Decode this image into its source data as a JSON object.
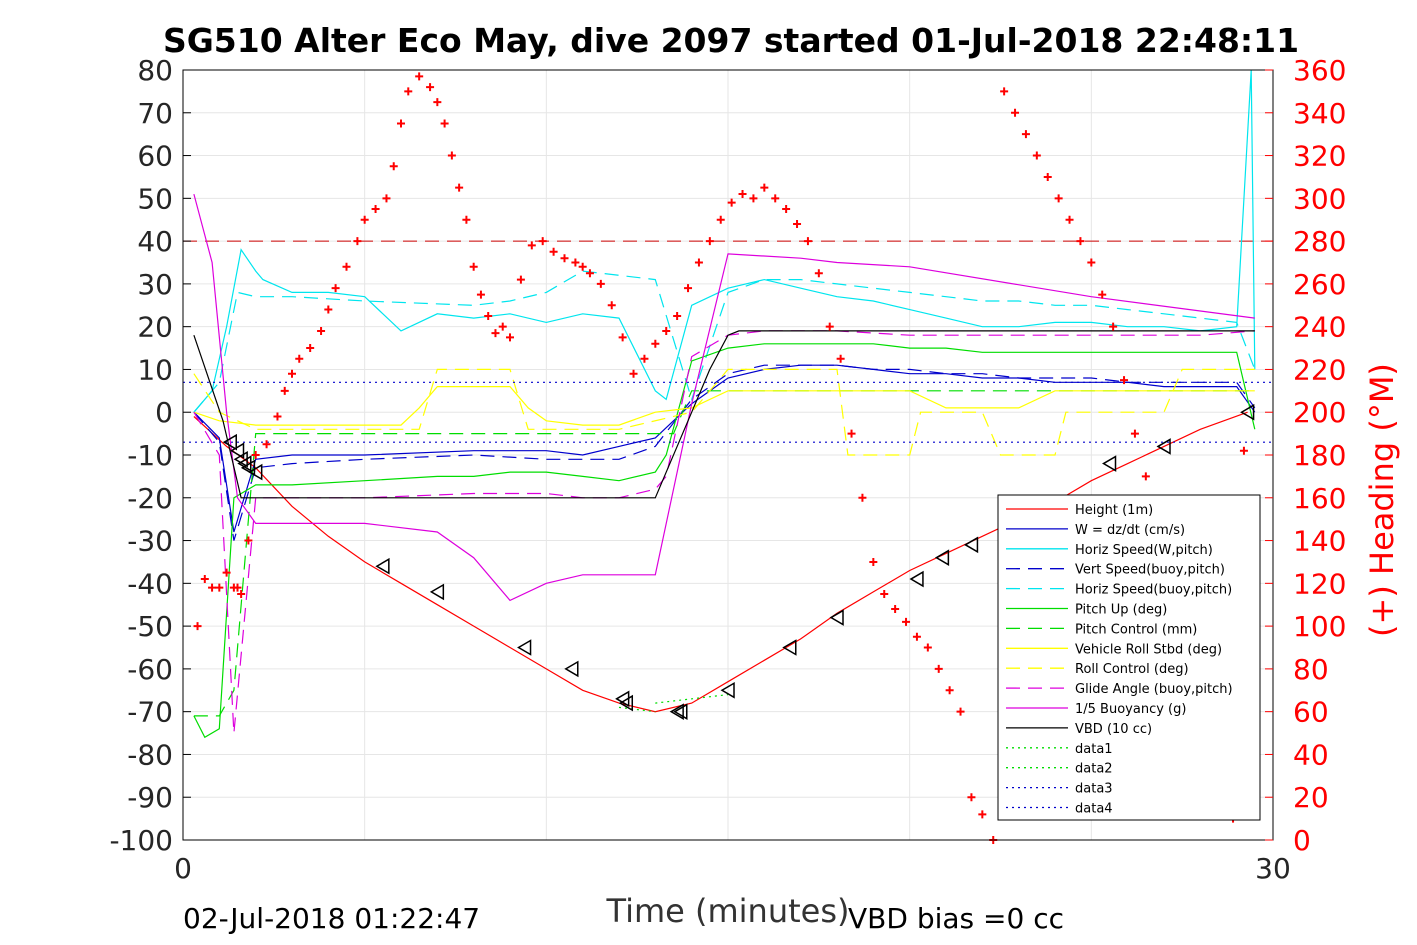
{
  "footer": {
    "timestamp": "02-Jul-2018 01:22:47",
    "vbd_bias": "VBD bias =0 cc"
  },
  "chart_data": {
    "type": "line",
    "title": "SG510 Alter Eco May, dive 2097 started 01-Jul-2018 22:48:11",
    "xlabel": "Time (minutes)",
    "ylabel_right": "(+) Heading (°M)",
    "xlim": [
      0,
      30
    ],
    "ylim": [
      -100,
      80
    ],
    "ylim_right": [
      0,
      360
    ],
    "xticks": [
      "0",
      "30"
    ],
    "yticks": [
      "80",
      "70",
      "60",
      "50",
      "40",
      "30",
      "20",
      "10",
      "0",
      "-10",
      "-20",
      "-30",
      "-40",
      "-50",
      "-60",
      "-70",
      "-80",
      "-90",
      "-100"
    ],
    "yticks_right": [
      "360",
      "340",
      "320",
      "300",
      "280",
      "260",
      "240",
      "220",
      "200",
      "180",
      "160",
      "140",
      "120",
      "100",
      "80",
      "60",
      "40",
      "20",
      "0"
    ],
    "grid": true,
    "legend_position": "lower-right",
    "colors": {
      "right_axis": "#ff0000",
      "heading_marker": "#ff0000"
    },
    "series": [
      {
        "name": "Height (1m)",
        "color": "#ff0000",
        "style": "solid",
        "x": [
          0.3,
          1.2,
          2,
          3,
          4,
          5,
          6,
          7,
          8,
          9,
          10,
          11,
          12,
          13,
          14,
          15,
          16,
          17,
          18,
          19,
          20,
          21,
          22,
          23,
          24,
          25,
          26,
          27,
          28,
          29.3
        ],
        "y": [
          -1,
          -8,
          -13,
          -22,
          -29,
          -35,
          -40,
          -45,
          -50,
          -55,
          -60,
          -65,
          -68,
          -70,
          -68,
          -63,
          -58,
          -53,
          -47,
          -42,
          -37,
          -33,
          -29,
          -25,
          -21,
          -16,
          -12,
          -8,
          -4,
          0
        ]
      },
      {
        "name": "W = dz/dt (cm/s)",
        "color": "#0000cc",
        "style": "solid",
        "x": [
          0.3,
          1.0,
          1.4,
          2,
          3,
          5,
          8,
          10,
          11,
          12,
          13,
          14,
          15,
          16,
          17,
          18,
          19,
          20,
          21,
          22,
          23,
          24,
          25,
          26,
          27,
          28,
          29,
          29.5
        ],
        "y": [
          0,
          -6,
          -28,
          -11,
          -10,
          -10,
          -9,
          -9,
          -10,
          -8,
          -6,
          2,
          8,
          10,
          11,
          11,
          10,
          9,
          9,
          8,
          8,
          7,
          7,
          7,
          6,
          6,
          6,
          0
        ]
      },
      {
        "name": "Horiz Speed(W,pitch)",
        "color": "#00e5ee",
        "style": "solid",
        "x": [
          0.3,
          0.8,
          1.2,
          1.6,
          2,
          2.2,
          3,
          4,
          5,
          6,
          7,
          8,
          9,
          10,
          11,
          12,
          13,
          13.3,
          14,
          15,
          16,
          17,
          18,
          19,
          20,
          21,
          22,
          23,
          24,
          25,
          26,
          27,
          28,
          29,
          29.4,
          29.5
        ],
        "y": [
          0,
          5,
          20,
          38,
          33,
          31,
          28,
          28,
          27,
          19,
          23,
          22,
          23,
          21,
          23,
          22,
          5,
          3,
          25,
          29,
          31,
          29,
          27,
          26,
          24,
          22,
          20,
          20,
          21,
          21,
          20,
          20,
          19,
          20,
          80,
          10
        ]
      },
      {
        "name": "Vert Speed(buoy,pitch)",
        "color": "#0000cc",
        "style": "dashed",
        "x": [
          0.3,
          1.0,
          1.4,
          2,
          3,
          5,
          8,
          10,
          12,
          13,
          14,
          15,
          16,
          17,
          18,
          19,
          20,
          21,
          22,
          23,
          24,
          25,
          26,
          27,
          28,
          29,
          29.5
        ],
        "y": [
          0,
          -7,
          -30,
          -13,
          -12,
          -11,
          -10,
          -11,
          -11,
          -8,
          3,
          9,
          11,
          11,
          11,
          10,
          10,
          9,
          9,
          8,
          8,
          8,
          7,
          7,
          7,
          7,
          1
        ]
      },
      {
        "name": "Horiz Speed(buoy,pitch)",
        "color": "#00e5ee",
        "style": "dashed",
        "x": [
          0.3,
          1.0,
          1.5,
          2,
          3,
          5,
          8,
          9,
          10,
          11,
          12,
          13,
          14,
          15,
          16,
          17,
          18,
          19,
          20,
          21,
          22,
          23,
          24,
          25,
          26,
          27,
          28,
          29,
          29.5
        ],
        "y": [
          0,
          7,
          28,
          27,
          27,
          26,
          25,
          26,
          28,
          33,
          32,
          31,
          3,
          28,
          31,
          31,
          30,
          29,
          28,
          27,
          26,
          26,
          25,
          25,
          24,
          23,
          22,
          21,
          10
        ]
      },
      {
        "name": "Pitch Up (deg)",
        "color": "#00dd00",
        "style": "solid",
        "x": [
          0.3,
          0.6,
          1.0,
          1.4,
          2,
          3,
          5,
          7,
          8,
          9,
          10,
          11,
          12,
          13,
          13.3,
          14,
          15,
          16,
          17,
          18,
          19,
          20,
          21,
          22,
          23,
          24,
          25,
          26,
          27,
          28,
          29,
          29.5
        ],
        "y": [
          -71,
          -76,
          -74,
          -20,
          -17,
          -17,
          -16,
          -15,
          -15,
          -14,
          -14,
          -15,
          -16,
          -14,
          -10,
          12,
          15,
          16,
          16,
          16,
          16,
          15,
          15,
          14,
          14,
          14,
          14,
          14,
          14,
          14,
          14,
          -4
        ]
      },
      {
        "name": "Pitch Control (mm)",
        "color": "#00dd00",
        "style": "dashed",
        "x": [
          0.3,
          1.0,
          1.4,
          2,
          5,
          8,
          10,
          12,
          13,
          13.5,
          14,
          15,
          20,
          25,
          29.5
        ],
        "y": [
          -71,
          -71,
          -65,
          -5,
          -5,
          -5,
          -5,
          -5,
          -5,
          -5,
          5,
          5,
          5,
          5,
          5
        ]
      },
      {
        "name": "Vehicle Roll Stbd (deg)",
        "color": "#ffff00",
        "style": "solid",
        "x": [
          0.3,
          1,
          2,
          3,
          5,
          6,
          6.5,
          7,
          9,
          9.5,
          10,
          11,
          12,
          13,
          14,
          15,
          16,
          17,
          18,
          19,
          20,
          21,
          22,
          23,
          24,
          25,
          26,
          27,
          28,
          29,
          29.5
        ],
        "y": [
          0,
          -2,
          -3,
          -3,
          -3,
          -3,
          1,
          6,
          6,
          1,
          -2,
          -3,
          -3,
          0,
          1,
          5,
          5,
          5,
          5,
          5,
          5,
          1,
          1,
          1,
          5,
          5,
          5,
          5,
          5,
          5,
          5
        ]
      },
      {
        "name": "Roll Control (deg)",
        "color": "#ffff00",
        "style": "dashed",
        "x": [
          0.3,
          1,
          2,
          5,
          6.5,
          7,
          9,
          9.5,
          12,
          14,
          15,
          18,
          18.3,
          20,
          20.3,
          22,
          22.5,
          24,
          24.3,
          27,
          27.5,
          29.5
        ],
        "y": [
          9,
          0,
          -4,
          -4,
          -4,
          10,
          10,
          -4,
          -4,
          0,
          10,
          10,
          -10,
          -10,
          0,
          0,
          -10,
          -10,
          0,
          0,
          10,
          10
        ]
      },
      {
        "name": "Glide Angle (buoy,pitch)",
        "color": "#dd00dd",
        "style": "dashed",
        "x": [
          0.3,
          1.0,
          1.4,
          2,
          3,
          5,
          8,
          10,
          11,
          12,
          13,
          13.3,
          14,
          15,
          16,
          17,
          18,
          20,
          22,
          24,
          26,
          28,
          29.5
        ],
        "y": [
          0,
          -10,
          -75,
          -20,
          -20,
          -20,
          -19,
          -19,
          -20,
          -20,
          -18,
          -15,
          13,
          18,
          19,
          19,
          19,
          18,
          18,
          18,
          18,
          18,
          19
        ]
      },
      {
        "name": "1/5 Buoyancy (g)",
        "color": "#dd00dd",
        "style": "solid",
        "x": [
          0.3,
          0.8,
          1.2,
          1.5,
          2,
          3,
          5,
          7,
          8,
          9,
          10,
          11,
          12,
          13,
          14,
          15,
          17,
          18,
          20,
          25,
          29.5
        ],
        "y": [
          51,
          35,
          0,
          -20,
          -26,
          -26,
          -26,
          -28,
          -34,
          -44,
          -40,
          -38,
          -38,
          -38,
          2,
          37,
          36,
          35,
          34,
          27,
          22
        ]
      },
      {
        "name": "VBD (10 cc)",
        "color": "#000000",
        "style": "solid",
        "x": [
          0.3,
          1.1,
          1.6,
          2,
          5,
          8,
          12,
          13,
          14,
          14.5,
          15,
          15.3,
          16,
          20,
          25,
          29.5
        ],
        "y": [
          18,
          -2,
          -20,
          -20,
          -20,
          -20,
          -20,
          -20,
          0,
          10,
          18,
          19,
          19,
          19,
          19,
          19
        ]
      },
      {
        "name": "data1",
        "color": "#00dd00",
        "style": "dotted",
        "x": [
          13,
          15
        ],
        "y": [
          -68,
          -66
        ]
      },
      {
        "name": "data2",
        "color": "#00dd00",
        "style": "dotted",
        "x": [
          12,
          13
        ],
        "y": [
          -69,
          -70
        ]
      },
      {
        "name": "data3",
        "color": "#0000cc",
        "style": "dotted",
        "x": [
          0,
          30
        ],
        "y": [
          7,
          7
        ]
      },
      {
        "name": "data4",
        "color": "#0000cc",
        "style": "dotted",
        "x": [
          0,
          30
        ],
        "y": [
          -7,
          -7
        ]
      }
    ],
    "reference_lines": [
      {
        "axis": "right",
        "value": 280,
        "color": "#cc0000",
        "style": "dashed"
      }
    ],
    "markers": {
      "shape": "left-triangle",
      "color": "#000000",
      "x": [
        1.3,
        1.5,
        1.6,
        1.7,
        1.8,
        2.0,
        5.5,
        7.0,
        9.4,
        10.7,
        12.1,
        12.2,
        13.6,
        13.7,
        15.0,
        16.7,
        18.0,
        20.2,
        20.9,
        21.7,
        23.1,
        25.5,
        27.0,
        29.3
      ],
      "y": [
        -7,
        -9,
        -11,
        -12,
        -13,
        -14,
        -36,
        -42,
        -55,
        -60,
        -67,
        -68,
        -70,
        -70,
        -65,
        -55,
        -48,
        -39,
        -34,
        -31,
        -26,
        -12,
        -8,
        0
      ]
    },
    "heading": {
      "axis": "right",
      "color": "#ff0000",
      "marker": "+",
      "x": [
        0.4,
        0.6,
        0.8,
        1.0,
        1.2,
        1.4,
        1.5,
        1.6,
        1.8,
        2.0,
        2.3,
        2.6,
        2.8,
        3.0,
        3.2,
        3.5,
        3.8,
        4.0,
        4.2,
        4.5,
        4.8,
        5.0,
        5.3,
        5.6,
        5.8,
        6.0,
        6.2,
        6.5,
        6.8,
        7.0,
        7.2,
        7.4,
        7.6,
        7.8,
        8.0,
        8.2,
        8.4,
        8.6,
        8.8,
        9.0,
        9.3,
        9.6,
        9.9,
        10.2,
        10.5,
        10.8,
        11.0,
        11.2,
        11.5,
        11.8,
        12.1,
        12.4,
        12.7,
        13.0,
        13.3,
        13.6,
        13.9,
        14.2,
        14.5,
        14.8,
        15.1,
        15.4,
        15.7,
        16.0,
        16.3,
        16.6,
        16.9,
        17.2,
        17.5,
        17.8,
        18.1,
        18.4,
        18.7,
        19.0,
        19.3,
        19.6,
        19.9,
        20.2,
        20.5,
        20.8,
        21.1,
        21.4,
        21.7,
        22.0,
        22.3,
        22.6,
        22.9,
        23.2,
        23.5,
        23.8,
        24.1,
        24.4,
        24.7,
        25.0,
        25.3,
        25.6,
        25.9,
        26.2,
        26.5,
        26.8,
        27.1,
        27.4,
        27.7,
        28.0,
        28.3,
        28.6,
        28.9,
        29.2
      ],
      "y": [
        100,
        122,
        118,
        118,
        125,
        118,
        118,
        115,
        140,
        180,
        185,
        198,
        210,
        218,
        225,
        230,
        238,
        248,
        258,
        268,
        280,
        290,
        295,
        300,
        315,
        335,
        350,
        357,
        352,
        345,
        335,
        320,
        305,
        290,
        268,
        255,
        245,
        237,
        240,
        235,
        262,
        278,
        280,
        275,
        272,
        270,
        268,
        265,
        260,
        250,
        235,
        218,
        225,
        232,
        238,
        245,
        258,
        270,
        280,
        290,
        298,
        302,
        300,
        305,
        300,
        295,
        288,
        280,
        265,
        240,
        225,
        190,
        160,
        130,
        115,
        108,
        102,
        95,
        90,
        80,
        70,
        60,
        20,
        12,
        0,
        350,
        340,
        330,
        320,
        310,
        300,
        290,
        280,
        270,
        255,
        240,
        215,
        190,
        170,
        140,
        120,
        100,
        80,
        60,
        40,
        20,
        10,
        182
      ]
    }
  }
}
